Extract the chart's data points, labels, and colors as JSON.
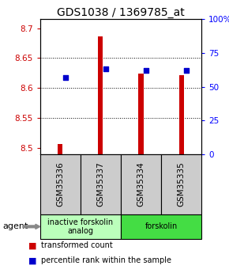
{
  "title": "GDS1038 / 1369785_at",
  "samples": [
    "GSM35336",
    "GSM35337",
    "GSM35334",
    "GSM35335"
  ],
  "red_values": [
    8.507,
    8.686,
    8.624,
    8.621
  ],
  "blue_values_pct": [
    57,
    63,
    62,
    62
  ],
  "ylim_left": [
    8.49,
    8.715
  ],
  "ylim_right": [
    0,
    100
  ],
  "yticks_left": [
    8.5,
    8.55,
    8.6,
    8.65,
    8.7
  ],
  "yticks_right": [
    0,
    25,
    50,
    75,
    100
  ],
  "ytick_labels_left": [
    "8.5",
    "8.55",
    "8.6",
    "8.65",
    "8.7"
  ],
  "ytick_labels_right": [
    "0",
    "25",
    "50",
    "75",
    "100%"
  ],
  "gridlines_at": [
    8.55,
    8.6,
    8.65
  ],
  "groups": [
    {
      "label": "inactive forskolin\nanalog",
      "start": 0,
      "end": 2,
      "color": "#bbffbb"
    },
    {
      "label": "forskolin",
      "start": 2,
      "end": 4,
      "color": "#44dd44"
    }
  ],
  "agent_label": "agent",
  "bar_width": 0.12,
  "bar_bottom": 8.49,
  "red_color": "#cc0000",
  "blue_color": "#0000cc",
  "legend_red": "transformed count",
  "legend_blue": "percentile rank within the sample",
  "title_fontsize": 10,
  "tick_fontsize": 7.5,
  "sample_fontsize": 7.5,
  "group_fontsize": 7,
  "legend_fontsize": 7
}
